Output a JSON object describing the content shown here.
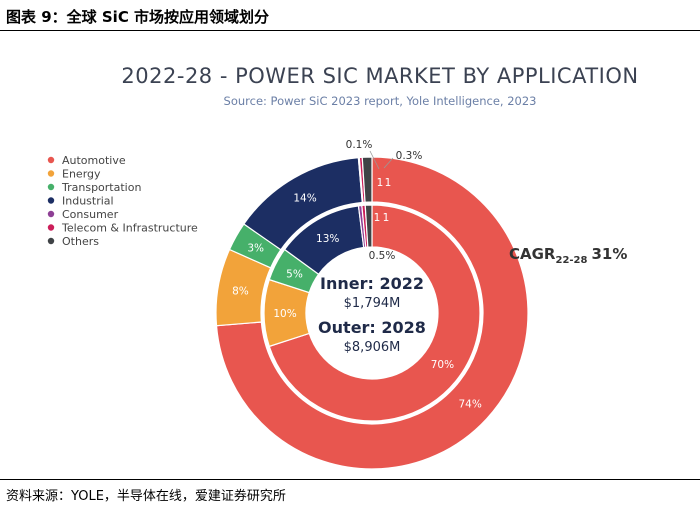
{
  "figure": {
    "title": "图表 9：全球 SiC 市场按应用领域划分",
    "source": "资料来源：YOLE，半导体在线，爱建证券研究所"
  },
  "chart_data": {
    "type": "pie",
    "title": "2022-28 - POWER SIC MARKET BY APPLICATION",
    "subtitle": "Source: Power SiC 2023 report, Yole Intelligence, 2023",
    "categories": [
      "Automotive",
      "Energy",
      "Transportation",
      "Industrial",
      "Consumer",
      "Telecom & Infrastructure",
      "Others"
    ],
    "colors": [
      "#e8564f",
      "#f2a33a",
      "#46b06a",
      "#1c2e63",
      "#8e3f95",
      "#cc1f5a",
      "#3f4346"
    ],
    "legend_position": "left",
    "series": [
      {
        "ring": "inner",
        "name": "Inner: 2022",
        "values": [
          70,
          10,
          5,
          13,
          0.5,
          0.5,
          1
        ],
        "labels": [
          "70%",
          "10%",
          "5%",
          "13%",
          "",
          "",
          ""
        ]
      },
      {
        "ring": "outer",
        "name": "Outer: 2028",
        "values": [
          74,
          8,
          3,
          14,
          0.1,
          0.3,
          1
        ],
        "labels": [
          "74%",
          "8%",
          "3%",
          "14%",
          "",
          "",
          ""
        ]
      }
    ],
    "annotations": [
      "0.1%",
      "0.3%",
      "0.5%",
      "1",
      "1",
      "1",
      "1"
    ],
    "center": {
      "inner_title": "Inner: 2022",
      "inner_value": "$1,794M",
      "outer_title": "Outer: 2028",
      "outer_value": "$8,906M"
    },
    "cagr": {
      "label": "CAGR",
      "sub": "22-28",
      "value": "31%"
    }
  }
}
